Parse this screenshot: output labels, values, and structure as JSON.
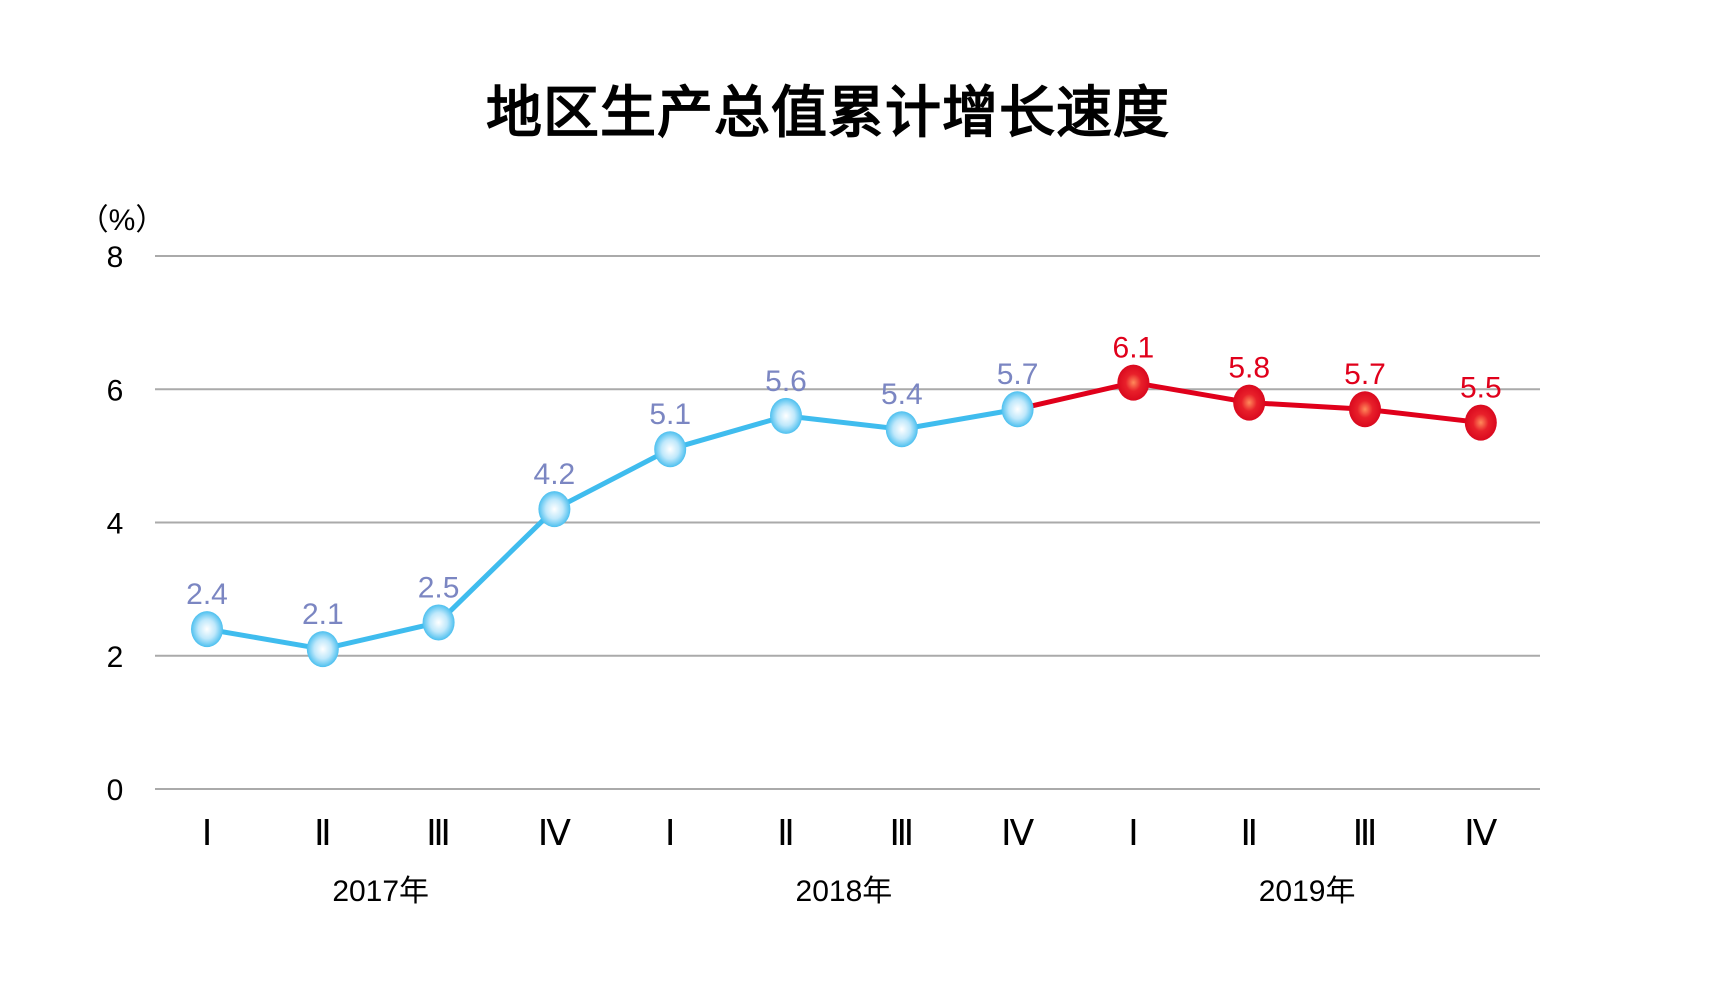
{
  "chart_data": {
    "type": "line",
    "title": "地区生产总值累计增长速度",
    "ylabel": "（%）",
    "xlabel": "",
    "ylim": [
      0,
      8
    ],
    "yticks": [
      0,
      2,
      4,
      6,
      8
    ],
    "grid": true,
    "categories": [
      "Ⅰ",
      "Ⅱ",
      "Ⅲ",
      "Ⅳ",
      "Ⅰ",
      "Ⅱ",
      "Ⅲ",
      "Ⅳ",
      "Ⅰ",
      "Ⅱ",
      "Ⅲ",
      "Ⅳ"
    ],
    "groups": [
      {
        "label": "2017年",
        "span": [
          0,
          3
        ]
      },
      {
        "label": "2018年",
        "span": [
          4,
          7
        ]
      },
      {
        "label": "2019年",
        "span": [
          8,
          11
        ]
      }
    ],
    "values": [
      2.4,
      2.1,
      2.5,
      4.2,
      5.1,
      5.6,
      5.4,
      5.7,
      6.1,
      5.8,
      5.7,
      5.5
    ],
    "value_labels": [
      "2.4",
      "2.1",
      "2.5",
      "4.2",
      "5.1",
      "5.6",
      "5.4",
      "5.7",
      "6.1",
      "5.8",
      "5.7",
      "5.5"
    ],
    "colors": {
      "line_early": "#3fbcee",
      "label_early": "#7b86c2",
      "line_late": "#e0001b",
      "label_late": "#e0001b",
      "grid": "#aaaaaa"
    },
    "highlight_from_index": 8
  }
}
